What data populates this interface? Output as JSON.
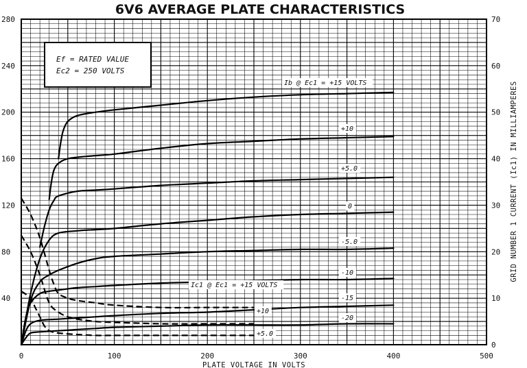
{
  "chart_data": {
    "type": "line",
    "title": "6V6 AVERAGE PLATE CHARACTERISTICS",
    "xlabel": "PLATE VOLTAGE IN VOLTS",
    "ylabel": "",
    "y2label": "GRID NUMBER 1 CURRENT (Ic1) IN MILLIAMPERES",
    "xlim": [
      0,
      500
    ],
    "ylim": [
      0,
      280
    ],
    "y2lim": [
      0,
      70
    ],
    "x_ticks": [
      "0",
      "100",
      "200",
      "300",
      "400",
      "500"
    ],
    "y_ticks": [
      "40",
      "80",
      "120",
      "160",
      "200",
      "240",
      "280"
    ],
    "y2_ticks": [
      "0",
      "10",
      "20",
      "30",
      "40",
      "50",
      "60",
      "70"
    ],
    "grid": true,
    "conditions": {
      "line1": "Ef = RATED VALUE",
      "line2": "Ec2 = 250 VOLTS"
    },
    "plate_series": [
      {
        "name": "Ib @ Ec1 = +15 VOLTS",
        "label": "Ib @ Ec1 = +15 VOLTS",
        "x": [
          40,
          42,
          45,
          50,
          60,
          80,
          100,
          150,
          200,
          250,
          300,
          350,
          400
        ],
        "y": [
          160,
          172,
          184,
          192,
          197,
          200,
          202,
          206,
          210,
          213,
          215,
          216,
          217
        ]
      },
      {
        "name": "+10",
        "label": "+10",
        "x": [
          30,
          32,
          35,
          40,
          50,
          70,
          100,
          150,
          200,
          250,
          300,
          350,
          400
        ],
        "y": [
          125,
          138,
          150,
          156,
          160,
          162,
          164,
          169,
          173,
          175,
          177,
          178,
          179
        ]
      },
      {
        "name": "+5.0",
        "label": "+5.0",
        "x": [
          20,
          25,
          30,
          35,
          40,
          60,
          80,
          100,
          150,
          200,
          250,
          300,
          350,
          400
        ],
        "y": [
          84,
          102,
          116,
          124,
          128,
          132,
          133,
          134,
          137,
          139,
          141,
          142,
          143,
          144
        ]
      },
      {
        "name": "0",
        "label": "0",
        "x": [
          0,
          10,
          20,
          30,
          40,
          60,
          80,
          100,
          150,
          200,
          250,
          300,
          350,
          400
        ],
        "y": [
          0,
          44,
          74,
          90,
          96,
          98,
          99,
          100,
          104,
          107,
          110,
          112,
          113,
          114
        ]
      },
      {
        "name": "-5.0",
        "label": "-5.0",
        "x": [
          0,
          10,
          20,
          30,
          40,
          60,
          80,
          100,
          150,
          200,
          250,
          300,
          350,
          400
        ],
        "y": [
          0,
          38,
          54,
          60,
          64,
          70,
          74,
          76,
          78,
          80,
          81,
          82,
          82,
          83
        ]
      },
      {
        "name": "-10",
        "label": "-10",
        "x": [
          0,
          5,
          10,
          20,
          30,
          40,
          60,
          80,
          100,
          150,
          200,
          250,
          300,
          350,
          400
        ],
        "y": [
          0,
          24,
          36,
          44,
          46,
          47,
          49,
          50,
          51,
          53,
          54,
          55,
          56,
          56,
          57
        ]
      },
      {
        "name": "-15",
        "label": "-15",
        "x": [
          0,
          5,
          10,
          20,
          40,
          60,
          80,
          100,
          150,
          200,
          250,
          300,
          350,
          400
        ],
        "y": [
          0,
          12,
          18,
          21,
          22,
          23,
          24,
          25,
          27,
          28,
          30,
          32,
          33,
          34
        ]
      },
      {
        "name": "-20",
        "label": "-20",
        "x": [
          0,
          5,
          10,
          20,
          40,
          60,
          80,
          100,
          150,
          200,
          250,
          300,
          350,
          400
        ],
        "y": [
          0,
          6,
          10,
          11,
          12,
          13,
          14,
          15,
          16,
          17,
          17,
          17,
          18,
          18
        ]
      }
    ],
    "grid_series": [
      {
        "name": "Ic1 @ Ec1 = +15 VOLTS",
        "label": "Ic1 @ Ec1 = +15 VOLTS",
        "axis": "right",
        "x": [
          0,
          10,
          20,
          30,
          35,
          40,
          50,
          60,
          80,
          100,
          150,
          200,
          250
        ],
        "y": [
          31.5,
          28,
          23,
          16,
          13,
          11,
          10,
          9.5,
          9,
          8.5,
          8,
          8,
          8
        ]
      },
      {
        "name": "Ic1 @ Ec1 = +10",
        "label": "+10",
        "axis": "right",
        "x": [
          0,
          10,
          20,
          30,
          40,
          50,
          60,
          80,
          100,
          150,
          200,
          250
        ],
        "y": [
          23.5,
          20,
          15,
          9,
          7,
          6,
          5.5,
          5,
          4.8,
          4.5,
          4.5,
          4.5
        ]
      },
      {
        "name": "Ic1 @ Ec1 = +5.0",
        "label": "+5.0",
        "axis": "right",
        "x": [
          0,
          10,
          15,
          20,
          25,
          30,
          40,
          60,
          80,
          100,
          150,
          200,
          250
        ],
        "y": [
          11.5,
          10,
          8,
          6,
          4,
          3,
          2.5,
          2.2,
          2,
          2,
          2,
          2,
          2
        ]
      }
    ]
  }
}
